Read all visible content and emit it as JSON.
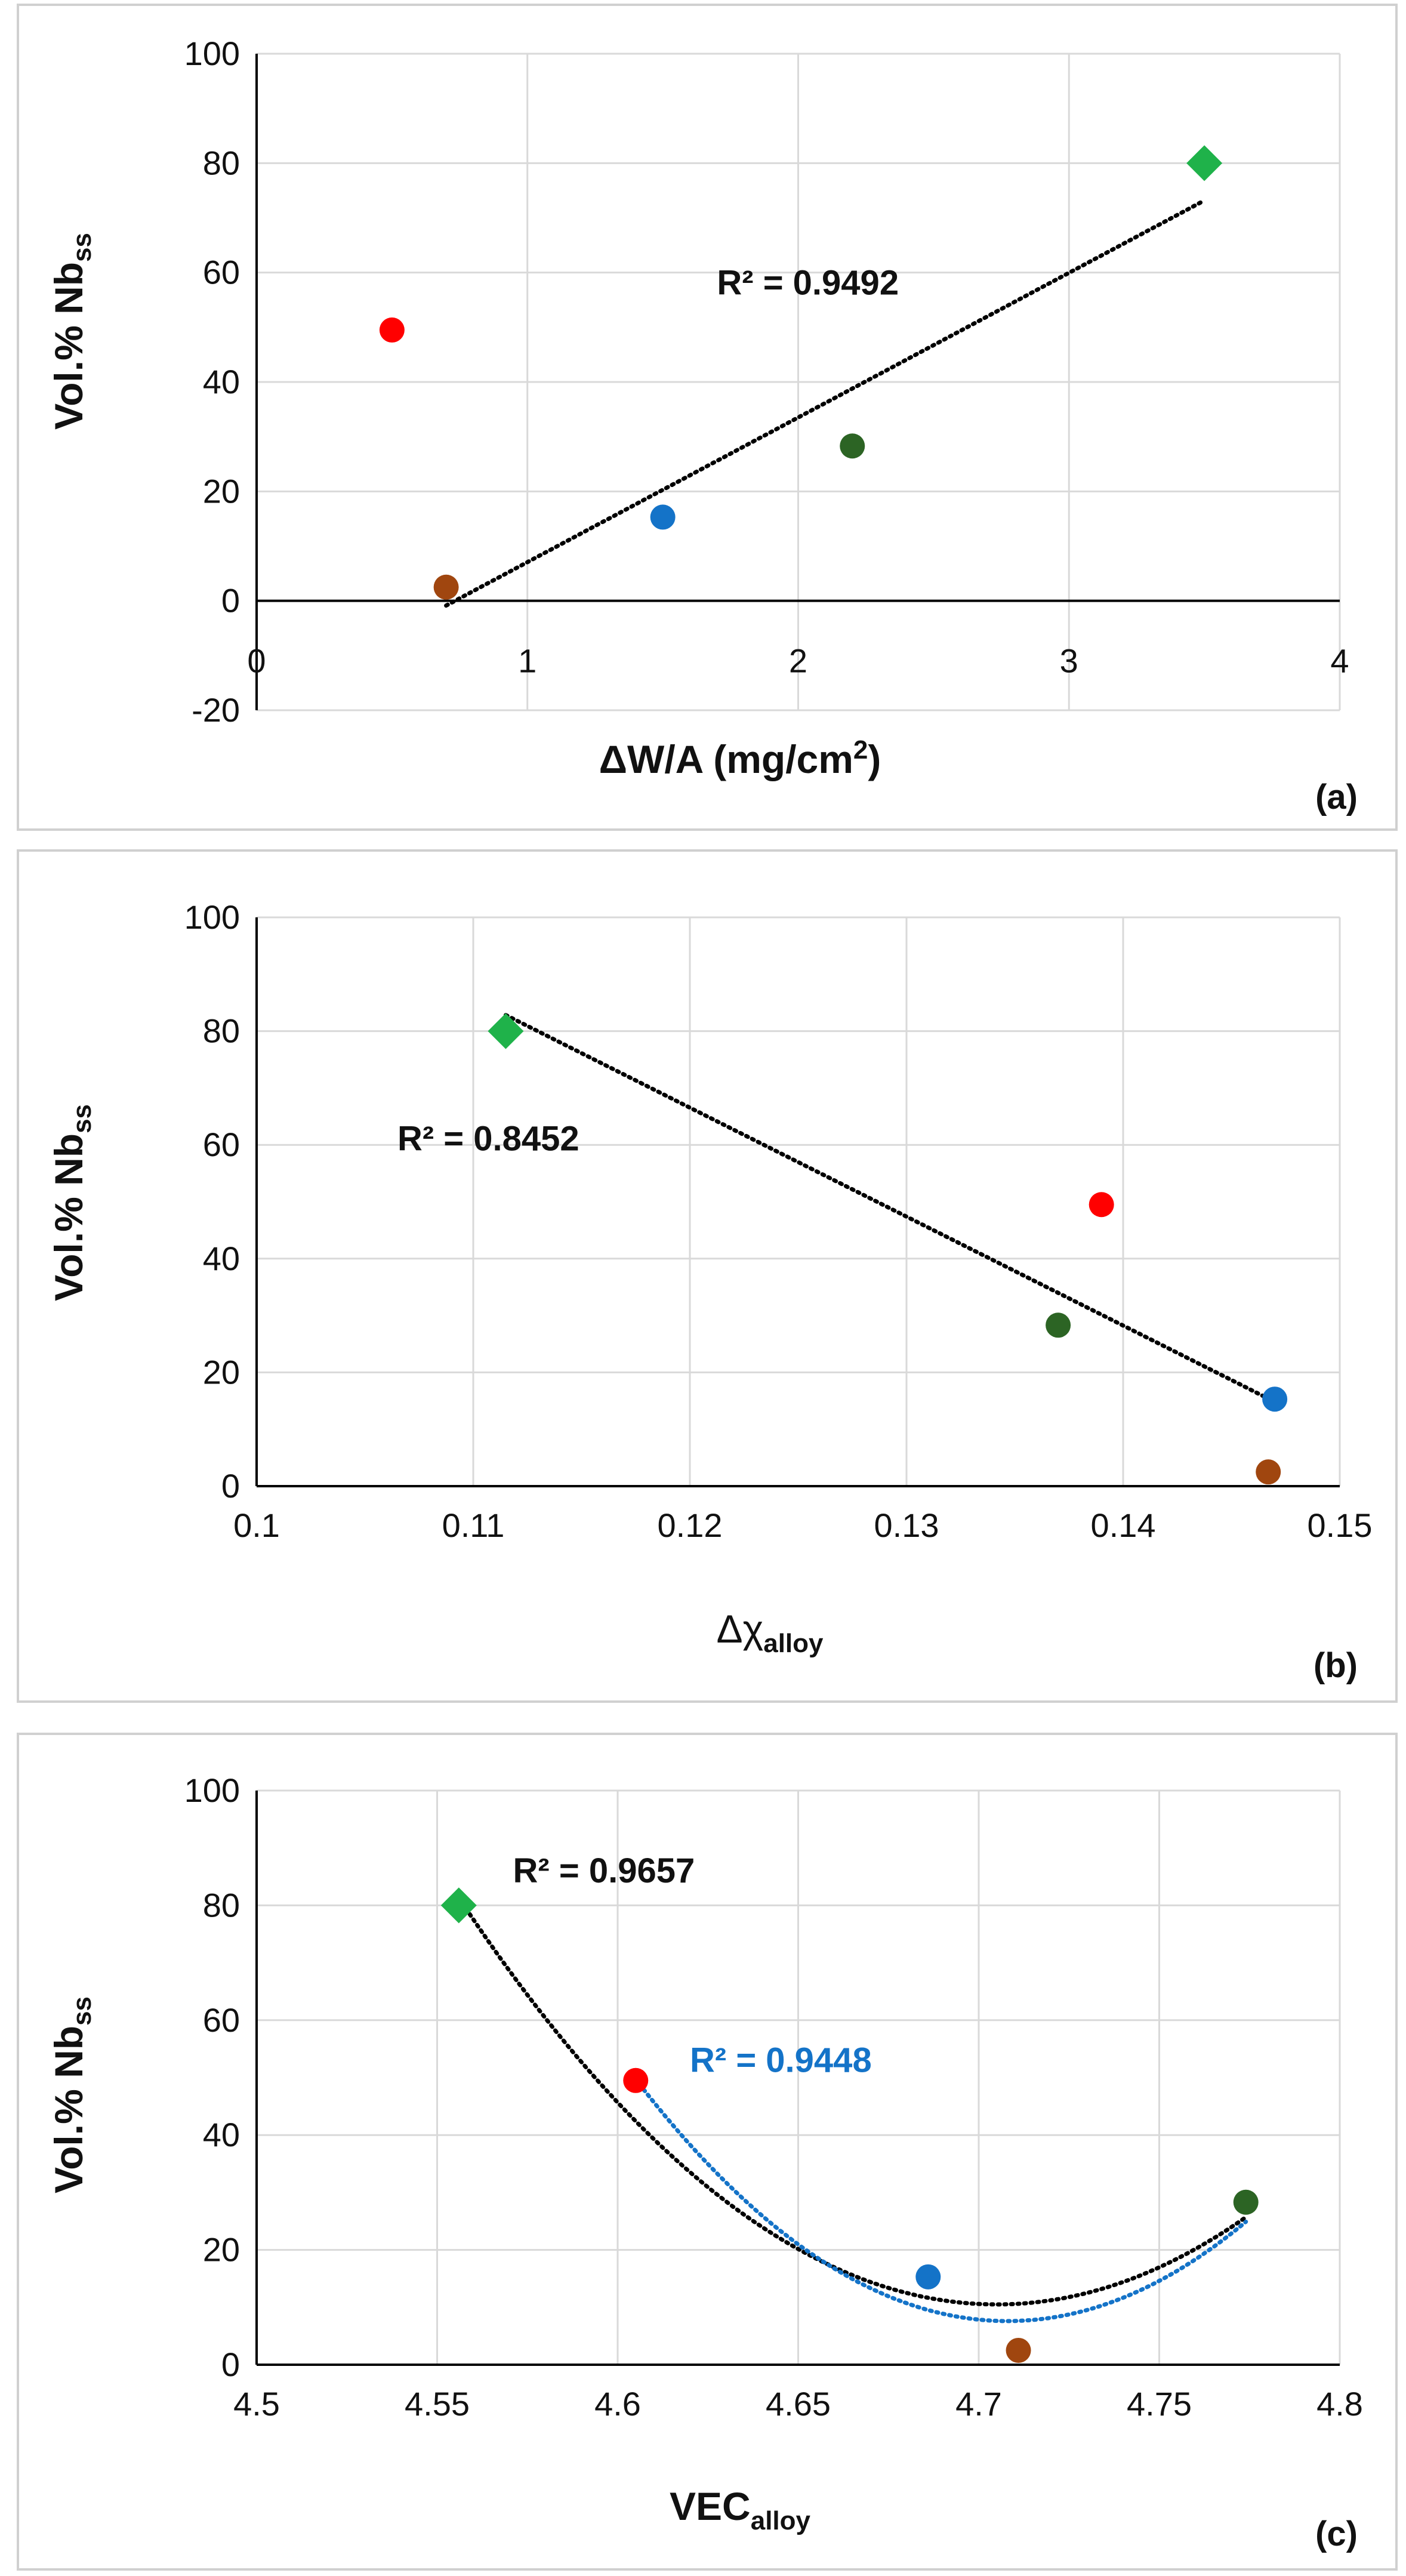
{
  "chart_data": [
    {
      "panel": "(a)",
      "type": "scatter",
      "xlabel": "ΔW/A (mg/cm",
      "xlabel_sup": "2",
      "xlabel_close": ")",
      "ylabel": "Vol.% Nb",
      "ylabel_sub": "ss",
      "xlim": [
        0,
        4
      ],
      "ylim": [
        -20,
        100
      ],
      "xticks": [
        0,
        1,
        2,
        3,
        4
      ],
      "yticks": [
        -20,
        0,
        20,
        40,
        60,
        80,
        100
      ],
      "points": [
        {
          "x": 0.5,
          "y": 49.5,
          "color": "#ff0000",
          "marker": "circle"
        },
        {
          "x": 0.7,
          "y": 2.5,
          "color": "#a0460f",
          "marker": "circle"
        },
        {
          "x": 1.5,
          "y": 15.3,
          "color": "#1473c8",
          "marker": "circle"
        },
        {
          "x": 2.2,
          "y": 28.3,
          "color": "#2c6424",
          "marker": "circle"
        },
        {
          "x": 3.5,
          "y": 80.0,
          "color": "#1fb24a",
          "marker": "diamond"
        }
      ],
      "trendlines": [
        {
          "kind": "linear",
          "x_range": [
            0.7,
            3.5
          ],
          "coeffs": [
            -19.37,
            26.44
          ],
          "color": "#000000",
          "label": "R² = 0.9492",
          "label_at": [
            1.7,
            56
          ],
          "label_color": "#111111"
        }
      ]
    },
    {
      "panel": "(b)",
      "type": "scatter",
      "xlabel": "Δχ",
      "xlabel_sub": "alloy",
      "ylabel": "Vol.% Nb",
      "ylabel_sub": "ss",
      "xlim": [
        0.1,
        0.15
      ],
      "ylim": [
        0,
        100
      ],
      "xticks": [
        0.1,
        0.11,
        0.12,
        0.13,
        0.14,
        0.15
      ],
      "yticks": [
        0,
        20,
        40,
        60,
        80,
        100
      ],
      "points": [
        {
          "x": 0.1115,
          "y": 80.0,
          "color": "#1fb24a",
          "marker": "diamond"
        },
        {
          "x": 0.139,
          "y": 49.5,
          "color": "#ff0000",
          "marker": "circle"
        },
        {
          "x": 0.137,
          "y": 28.3,
          "color": "#2c6424",
          "marker": "circle"
        },
        {
          "x": 0.147,
          "y": 15.3,
          "color": "#1473c8",
          "marker": "circle"
        },
        {
          "x": 0.1467,
          "y": 2.5,
          "color": "#a0460f",
          "marker": "circle"
        }
      ],
      "trendlines": [
        {
          "kind": "linear",
          "x_range": [
            0.1115,
            0.147
          ],
          "coeffs": [
            296.4,
            -1915.5
          ],
          "color": "#000000",
          "label": "R² = 0.8452",
          "label_at": [
            0.1065,
            59
          ],
          "label_color": "#111111"
        }
      ]
    },
    {
      "panel": "(c)",
      "type": "scatter",
      "xlabel": "VEC",
      "xlabel_sub": "alloy",
      "ylabel": "Vol.% Nb",
      "ylabel_sub": "ss",
      "xlim": [
        4.5,
        4.8
      ],
      "ylim": [
        0,
        100
      ],
      "xticks": [
        4.5,
        4.55,
        4.6,
        4.65,
        4.7,
        4.75,
        4.8
      ],
      "yticks": [
        0,
        20,
        40,
        60,
        80,
        100
      ],
      "points": [
        {
          "x": 4.556,
          "y": 80.0,
          "color": "#1fb24a",
          "marker": "diamond"
        },
        {
          "x": 4.605,
          "y": 49.5,
          "color": "#ff0000",
          "marker": "circle"
        },
        {
          "x": 4.686,
          "y": 15.3,
          "color": "#1473c8",
          "marker": "circle"
        },
        {
          "x": 4.711,
          "y": 2.5,
          "color": "#a0460f",
          "marker": "circle"
        },
        {
          "x": 4.774,
          "y": 28.3,
          "color": "#2c6424",
          "marker": "circle"
        }
      ],
      "trendlines": [
        {
          "kind": "quadratic",
          "x_range": [
            4.556,
            4.774
          ],
          "vertex": [
            4.705,
            10.5
          ],
          "a": 3190,
          "color": "#000000",
          "label": "R² = 0.9657",
          "label_at": [
            4.571,
            84
          ],
          "label_color": "#111111"
        },
        {
          "kind": "quadratic",
          "x_range": [
            4.605,
            4.774
          ],
          "vertex": [
            4.708,
            7.6
          ],
          "a": 3970,
          "color": "#1473c8",
          "label": "R² = 0.9448",
          "label_at": [
            4.62,
            51
          ],
          "label_color": "#1473c8"
        }
      ]
    }
  ]
}
